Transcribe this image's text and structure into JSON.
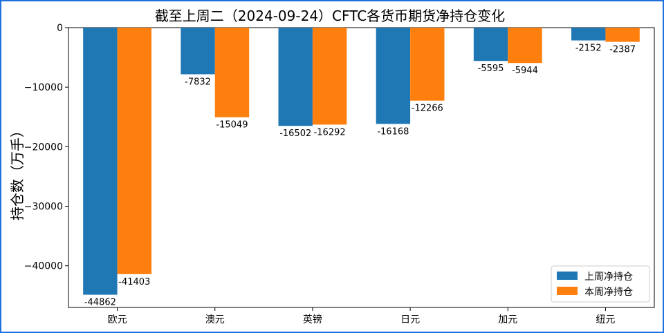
{
  "chart_data": {
    "type": "bar",
    "title": "截至上周二（2024-09-24）CFTC各货币期货净持仓变化",
    "ylabel": "持仓数（万手）",
    "xlabel": "",
    "categories": [
      "欧元",
      "澳元",
      "英镑",
      "日元",
      "加元",
      "纽元"
    ],
    "series": [
      {
        "name": "上周净持仓",
        "color": "#1f77b4",
        "values": [
          -44862,
          -7832,
          -16502,
          -16168,
          -5595,
          -2152
        ]
      },
      {
        "name": "本周净持仓",
        "color": "#ff7f0e",
        "values": [
          -41403,
          -15049,
          -16292,
          -12266,
          -5944,
          -2387
        ]
      }
    ],
    "ylim": [
      -47000,
      0
    ],
    "yticks": [
      0,
      -10000,
      -20000,
      -30000,
      -40000
    ],
    "grid": false,
    "legend_position": "bottom-right"
  }
}
